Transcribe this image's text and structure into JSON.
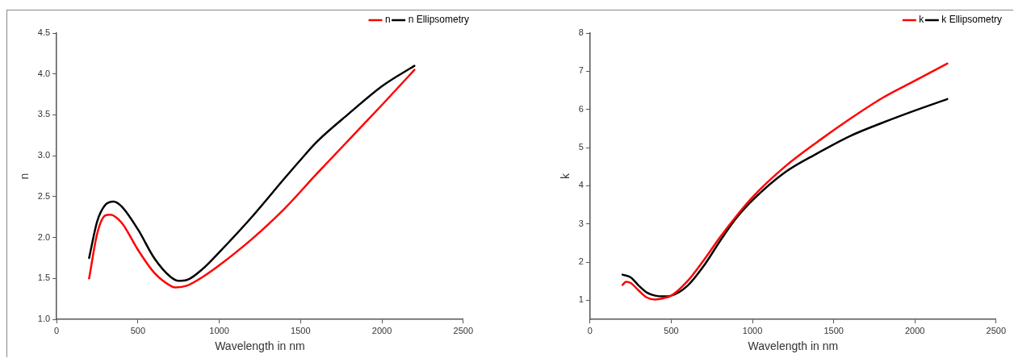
{
  "chart_data": [
    {
      "type": "line",
      "xlabel": "Wavelength in nm",
      "ylabel": "n",
      "xlim": [
        0,
        2500
      ],
      "xticks": [
        0,
        500,
        1000,
        1500,
        2000,
        2500
      ],
      "ylim": [
        1,
        4.5
      ],
      "yticks": [
        {
          "value": 1,
          "label": "1.0"
        },
        1.5,
        {
          "value": 2,
          "label": "2.0"
        },
        2.5,
        {
          "value": 3,
          "label": "3.0"
        },
        3.5,
        {
          "value": 4,
          "label": "4.0"
        },
        4.5
      ],
      "grid": false,
      "legend": "top right",
      "marker": "none",
      "line_style": "solid",
      "series": [
        {
          "name": "n",
          "color": "#ff0000",
          "x": [
            200,
            250,
            300,
            330,
            400,
            500,
            600,
            700,
            730,
            800,
            900,
            1000,
            1200,
            1400,
            1600,
            1800,
            2000,
            2200
          ],
          "values": [
            1.5,
            2.05,
            2.27,
            2.28,
            2.18,
            1.85,
            1.57,
            1.41,
            1.39,
            1.41,
            1.52,
            1.66,
            1.98,
            2.35,
            2.78,
            3.2,
            3.62,
            4.05
          ]
        },
        {
          "name": "n Ellipsometry",
          "color": "#000000",
          "x": [
            200,
            250,
            300,
            350,
            400,
            500,
            600,
            700,
            750,
            800,
            900,
            1000,
            1200,
            1400,
            1500,
            1600,
            1800,
            2000,
            2200
          ],
          "values": [
            1.75,
            2.2,
            2.4,
            2.44,
            2.38,
            2.1,
            1.75,
            1.52,
            1.47,
            1.48,
            1.62,
            1.82,
            2.25,
            2.72,
            2.95,
            3.17,
            3.52,
            3.85,
            4.1
          ]
        }
      ]
    },
    {
      "type": "line",
      "xlabel": "Wavelength in nm",
      "ylabel": "k",
      "xlim": [
        0,
        2500
      ],
      "xticks": [
        0,
        500,
        1000,
        1500,
        2000,
        2500
      ],
      "ylim": [
        0.5,
        8
      ],
      "yticks": [
        1,
        2,
        3,
        4,
        5,
        6,
        7,
        8
      ],
      "grid": false,
      "legend": "top right",
      "marker": "none",
      "line_style": "solid",
      "series": [
        {
          "name": "k",
          "color": "#ff0000",
          "x": [
            200,
            220,
            250,
            300,
            350,
            400,
            450,
            500,
            600,
            700,
            800,
            900,
            1000,
            1200,
            1400,
            1600,
            1800,
            2000,
            2200
          ],
          "values": [
            1.4,
            1.48,
            1.45,
            1.25,
            1.07,
            1.02,
            1.05,
            1.12,
            1.5,
            2.05,
            2.65,
            3.2,
            3.7,
            4.5,
            5.15,
            5.75,
            6.3,
            6.75,
            7.2
          ]
        },
        {
          "name": "k Ellipsometry",
          "color": "#000000",
          "x": [
            200,
            250,
            300,
            350,
            400,
            450,
            500,
            600,
            700,
            800,
            900,
            1000,
            1200,
            1400,
            1600,
            1800,
            2000,
            2200
          ],
          "values": [
            1.67,
            1.6,
            1.38,
            1.2,
            1.12,
            1.1,
            1.12,
            1.38,
            1.9,
            2.55,
            3.15,
            3.62,
            4.35,
            4.85,
            5.3,
            5.65,
            5.97,
            6.27
          ]
        }
      ]
    }
  ]
}
